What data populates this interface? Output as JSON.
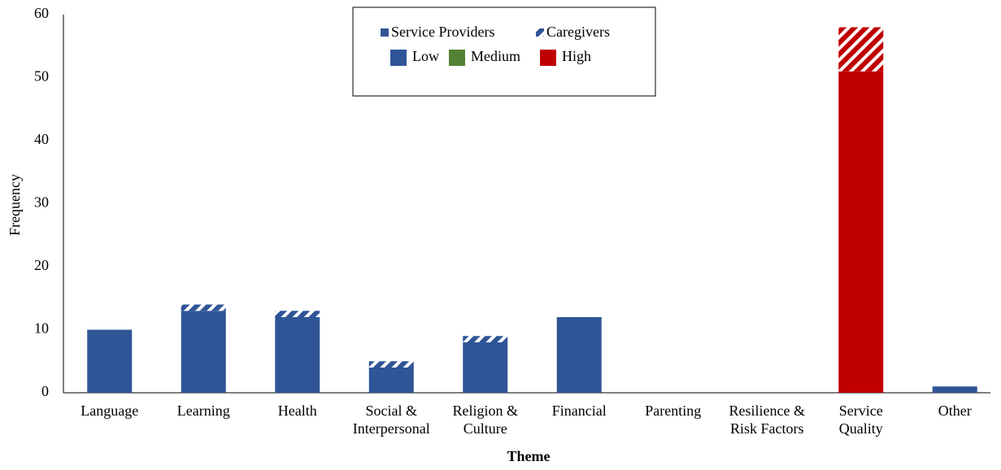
{
  "chart_data": {
    "type": "stacked_bar",
    "xlabel": "Theme",
    "ylabel": "Frequency",
    "categories": [
      [
        "Language"
      ],
      [
        "Learning"
      ],
      [
        "Health"
      ],
      [
        "Social &",
        "Interpersonal"
      ],
      [
        "Religion &",
        "Culture"
      ],
      [
        "Financial"
      ],
      [
        "Parenting"
      ],
      [
        "Resilience &",
        "Risk Factors"
      ],
      [
        "Service",
        "Quality"
      ],
      [
        "Other"
      ]
    ],
    "bar_colors": [
      "#2f5597",
      "#2f5597",
      "#2f5597",
      "#2f5597",
      "#2f5597",
      "#2f5597",
      "#2f5597",
      "#2f5597",
      "#c00000",
      "#2f5597"
    ],
    "series": [
      {
        "name": "Service Providers",
        "pattern": "solid",
        "values": [
          10,
          13,
          12,
          4,
          8,
          12,
          0,
          0,
          51,
          1
        ]
      },
      {
        "name": "Caregivers",
        "pattern": "hatched",
        "values": [
          0,
          1,
          1,
          1,
          1,
          0,
          0,
          0,
          7,
          0
        ]
      }
    ],
    "levels": [
      {
        "name": "Low",
        "color": "#2f5597"
      },
      {
        "name": "Medium",
        "color": "#548235"
      },
      {
        "name": "High",
        "color": "#c00000"
      }
    ],
    "ylim": [
      0,
      60
    ],
    "yticks": [
      0,
      10,
      20,
      30,
      40,
      50,
      60
    ],
    "grid": false
  }
}
